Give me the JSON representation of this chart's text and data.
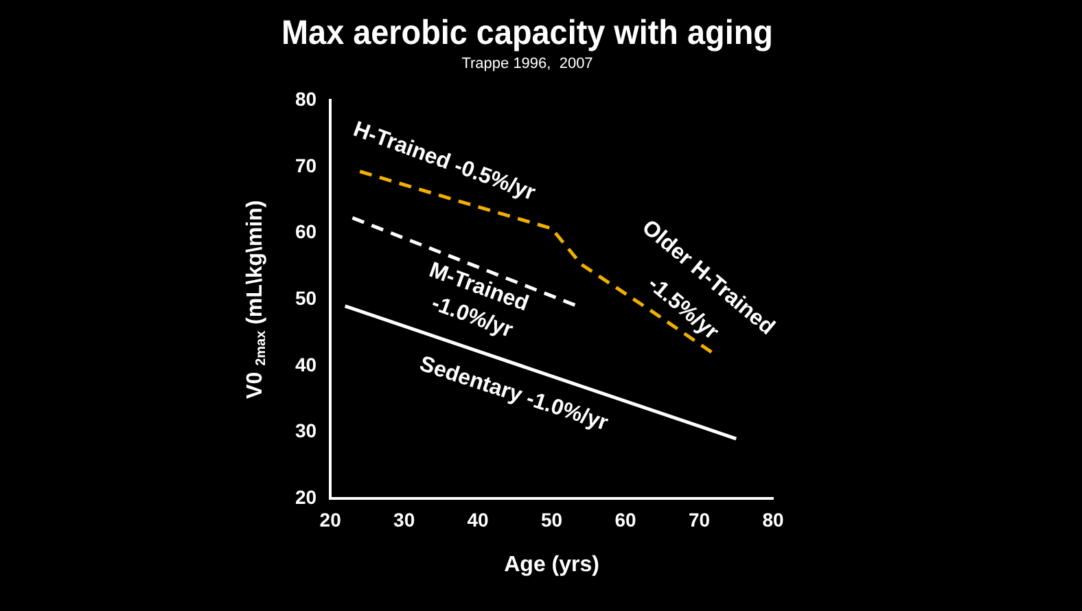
{
  "chart_data": {
    "type": "line",
    "title": "Max aerobic capacity with aging",
    "subtitle": "Trappe 1996,  2007",
    "xlabel": "Age (yrs)",
    "ylabel": "V0 $_{2max}$ (mL\\kg\\min)",
    "xlim": [
      20,
      80
    ],
    "xticks": [
      20,
      30,
      40,
      50,
      60,
      70,
      80
    ],
    "ylim": [
      20,
      80
    ],
    "yticks": [
      20,
      30,
      40,
      50,
      60,
      70,
      80
    ],
    "grid": false,
    "legend": false,
    "marker": "none",
    "series": [
      {
        "color": "#ffffff",
        "line_style": "solid",
        "x": [
          22,
          75
        ],
        "values": [
          49,
          29
        ]
      },
      {
        "color": "#ffffff",
        "line_style": "dashed",
        "x": [
          23,
          53.5
        ],
        "values": [
          62.3,
          49
        ]
      },
      {
        "color": "#f0b000",
        "line_style": "dashed",
        "x": [
          24,
          39,
          50,
          54,
          63.6,
          72
        ],
        "values": [
          69.3,
          64.3,
          60.7,
          55.3,
          48.2,
          41.8
        ]
      }
    ],
    "annotations": [
      "H-Trained -0.5%/yr",
      "M-Trained",
      "-1.0%/yr",
      "Older H-Trained",
      "-1.5%/yr",
      "Sedentary -1.0%/yr"
    ]
  }
}
